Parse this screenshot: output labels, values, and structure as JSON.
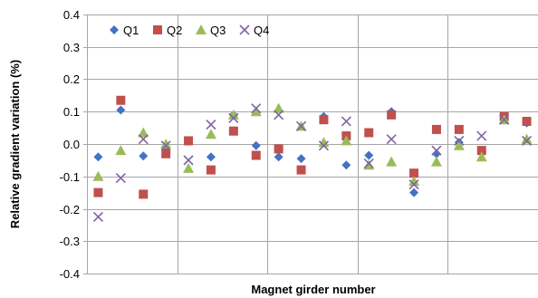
{
  "chart_data": {
    "type": "scatter",
    "title": "",
    "xlabel": "Magnet girder number",
    "ylabel": "Relative gradient variation (%)",
    "ylim": [
      -0.4,
      0.4
    ],
    "yticks": [
      -0.4,
      -0.3,
      -0.2,
      -0.1,
      0.0,
      0.1,
      0.2,
      0.3,
      0.4
    ],
    "ytick_labels": [
      "-0.4",
      "-0.3",
      "-0.2",
      "-0.1",
      "0.0",
      "0.1",
      "0.2",
      "0.3",
      "0.4"
    ],
    "xlim": [
      0,
      20
    ],
    "x_gridlines": [
      4,
      8,
      12,
      16,
      20
    ],
    "legend_position": "top-left",
    "grid": true,
    "series": [
      {
        "name": "Q1",
        "marker": "diamond",
        "color": "#4472C4",
        "points": [
          [
            1,
            -0.04
          ],
          [
            2,
            0.105
          ],
          [
            3,
            -0.037
          ],
          [
            4,
            -0.02
          ],
          [
            5,
            0.008
          ],
          [
            6,
            -0.04
          ],
          [
            7,
            0.09
          ],
          [
            8,
            -0.005
          ],
          [
            9,
            -0.04
          ],
          [
            10,
            -0.045
          ],
          [
            11,
            0.085
          ],
          [
            12,
            -0.065
          ],
          [
            13,
            -0.035
          ],
          [
            14,
            0.1
          ],
          [
            15,
            -0.15
          ],
          [
            16,
            -0.03
          ],
          [
            17,
            0.005
          ],
          [
            18,
            -0.02
          ],
          [
            19,
            0.075
          ],
          [
            20,
            0.065
          ]
        ]
      },
      {
        "name": "Q2",
        "marker": "square",
        "color": "#C0504D",
        "points": [
          [
            1,
            -0.15
          ],
          [
            2,
            0.135
          ],
          [
            3,
            -0.155
          ],
          [
            4,
            -0.03
          ],
          [
            5,
            0.01
          ],
          [
            6,
            -0.08
          ],
          [
            7,
            0.04
          ],
          [
            8,
            -0.035
          ],
          [
            9,
            -0.015
          ],
          [
            10,
            -0.08
          ],
          [
            11,
            0.075
          ],
          [
            12,
            0.025
          ],
          [
            13,
            0.035
          ],
          [
            14,
            0.09
          ],
          [
            15,
            -0.09
          ],
          [
            16,
            0.045
          ],
          [
            17,
            0.045
          ],
          [
            18,
            -0.02
          ],
          [
            19,
            0.085
          ],
          [
            20,
            0.07
          ]
        ]
      },
      {
        "name": "Q3",
        "marker": "triangle",
        "color": "#9BBB59",
        "points": [
          [
            1,
            -0.1
          ],
          [
            2,
            -0.02
          ],
          [
            3,
            0.035
          ],
          [
            4,
            0.0
          ],
          [
            5,
            -0.075
          ],
          [
            6,
            0.03
          ],
          [
            7,
            0.09
          ],
          [
            8,
            0.1
          ],
          [
            9,
            0.11
          ],
          [
            10,
            0.055
          ],
          [
            11,
            0.005
          ],
          [
            12,
            0.01
          ],
          [
            13,
            -0.065
          ],
          [
            14,
            -0.055
          ],
          [
            15,
            -0.115
          ],
          [
            16,
            -0.055
          ],
          [
            17,
            -0.005
          ],
          [
            18,
            -0.04
          ],
          [
            19,
            0.075
          ],
          [
            20,
            0.015
          ]
        ]
      },
      {
        "name": "Q4",
        "marker": "x",
        "color": "#8064A2",
        "points": [
          [
            1,
            -0.225
          ],
          [
            2,
            -0.105
          ],
          [
            3,
            0.015
          ],
          [
            4,
            -0.005
          ],
          [
            5,
            -0.05
          ],
          [
            6,
            0.06
          ],
          [
            7,
            0.08
          ],
          [
            8,
            0.11
          ],
          [
            9,
            0.09
          ],
          [
            10,
            0.055
          ],
          [
            11,
            -0.005
          ],
          [
            12,
            0.07
          ],
          [
            13,
            -0.06
          ],
          [
            14,
            0.015
          ],
          [
            15,
            -0.125
          ],
          [
            16,
            -0.02
          ],
          [
            17,
            0.01
          ],
          [
            18,
            0.025
          ],
          [
            19,
            0.075
          ],
          [
            20,
            0.01
          ]
        ]
      }
    ]
  }
}
